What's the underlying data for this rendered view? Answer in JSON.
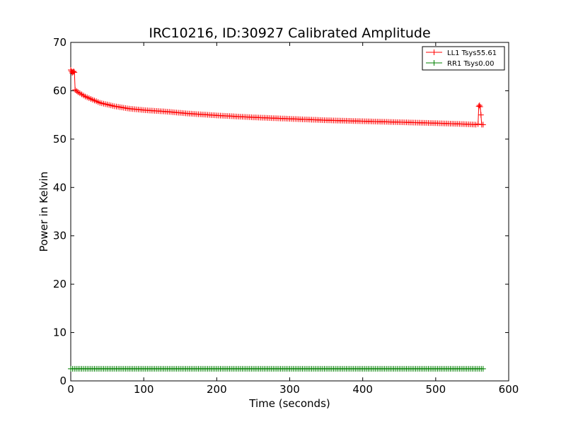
{
  "chart_data": {
    "type": "line",
    "title": "IRC10216, ID:30927 Calibrated Amplitude",
    "xlabel": "Time (seconds)",
    "ylabel": "Power in Kelvin",
    "xlim": [
      0,
      600
    ],
    "ylim": [
      0,
      70
    ],
    "xticks": [
      0,
      100,
      200,
      300,
      400,
      500,
      600
    ],
    "yticks": [
      0,
      10,
      20,
      30,
      40,
      50,
      60,
      70
    ],
    "grid": false,
    "legend_position": "top-right",
    "series": [
      {
        "name": "LL1 Tsys55.61",
        "color": "#ff0000",
        "marker": "+",
        "x": [
          0,
          1,
          2,
          3,
          4,
          5,
          6,
          10,
          20,
          40,
          60,
          80,
          100,
          130,
          160,
          200,
          250,
          300,
          350,
          400,
          450,
          500,
          540,
          555,
          558,
          559,
          560,
          561,
          562,
          563,
          565
        ],
        "y": [
          64.3,
          64.0,
          63.7,
          63.9,
          64.0,
          63.8,
          60.2,
          59.7,
          58.8,
          57.5,
          56.8,
          56.3,
          56.0,
          55.7,
          55.3,
          54.9,
          54.5,
          54.2,
          53.9,
          53.7,
          53.5,
          53.3,
          53.1,
          53.0,
          53.1,
          56.8,
          57.0,
          56.7,
          55.0,
          53.0,
          53.0
        ]
      },
      {
        "name": "RR1 Tsys0.00",
        "color": "#008000",
        "marker": "+",
        "x": [
          0,
          100,
          200,
          300,
          400,
          500,
          565
        ],
        "y": [
          2.5,
          2.5,
          2.5,
          2.5,
          2.5,
          2.5,
          2.5
        ]
      }
    ]
  }
}
